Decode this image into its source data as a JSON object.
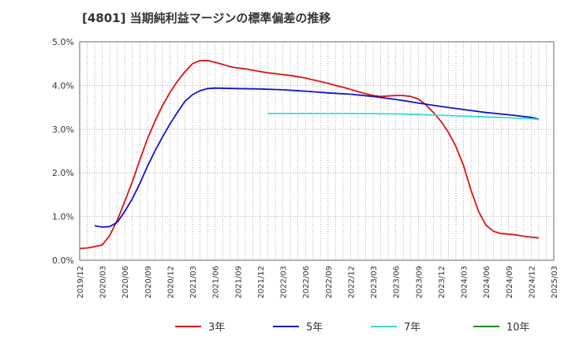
{
  "chart_data": {
    "type": "line",
    "title": "[4801]  当期純利益マージンの標準偏差の推移",
    "xlabel": "",
    "ylabel": "",
    "ylim": [
      0,
      5
    ],
    "y_ticks": [
      "0.0%",
      "1.0%",
      "2.0%",
      "3.0%",
      "4.0%",
      "5.0%"
    ],
    "x_tick_labels": [
      "2019/12",
      "2020/03",
      "2020/06",
      "2020/09",
      "2020/12",
      "2021/03",
      "2021/06",
      "2021/09",
      "2021/12",
      "2022/03",
      "2022/06",
      "2022/09",
      "2022/12",
      "2023/03",
      "2023/06",
      "2023/09",
      "2023/12",
      "2024/03",
      "2024/06",
      "2024/09",
      "2024/12",
      "2025/03"
    ],
    "grid": true,
    "legend_position": "bottom",
    "series": [
      {
        "name": "3年",
        "color": "#dd1111",
        "points": [
          [
            "2019/12",
            0.27
          ],
          [
            "2020/01",
            0.28
          ],
          [
            "2020/02",
            0.31
          ],
          [
            "2020/03",
            0.35
          ],
          [
            "2020/04",
            0.57
          ],
          [
            "2020/05",
            0.92
          ],
          [
            "2020/06",
            1.35
          ],
          [
            "2020/07",
            1.8
          ],
          [
            "2020/08",
            2.3
          ],
          [
            "2020/09",
            2.78
          ],
          [
            "2020/10",
            3.18
          ],
          [
            "2020/11",
            3.54
          ],
          [
            "2020/12",
            3.84
          ],
          [
            "2021/01",
            4.1
          ],
          [
            "2021/02",
            4.32
          ],
          [
            "2021/03",
            4.5
          ],
          [
            "2021/04",
            4.57
          ],
          [
            "2021/05",
            4.57
          ],
          [
            "2021/06",
            4.53
          ],
          [
            "2021/07",
            4.48
          ],
          [
            "2021/08",
            4.43
          ],
          [
            "2021/09",
            4.4
          ],
          [
            "2021/10",
            4.38
          ],
          [
            "2021/11",
            4.35
          ],
          [
            "2021/12",
            4.32
          ],
          [
            "2022/01",
            4.29
          ],
          [
            "2022/02",
            4.27
          ],
          [
            "2022/03",
            4.25
          ],
          [
            "2022/04",
            4.23
          ],
          [
            "2022/05",
            4.2
          ],
          [
            "2022/06",
            4.17
          ],
          [
            "2022/07",
            4.13
          ],
          [
            "2022/08",
            4.09
          ],
          [
            "2022/09",
            4.05
          ],
          [
            "2022/10",
            4.0
          ],
          [
            "2022/11",
            3.96
          ],
          [
            "2022/12",
            3.91
          ],
          [
            "2023/01",
            3.86
          ],
          [
            "2023/02",
            3.81
          ],
          [
            "2023/03",
            3.77
          ],
          [
            "2023/04",
            3.75
          ],
          [
            "2023/05",
            3.76
          ],
          [
            "2023/06",
            3.77
          ],
          [
            "2023/07",
            3.77
          ],
          [
            "2023/08",
            3.75
          ],
          [
            "2023/09",
            3.69
          ],
          [
            "2023/10",
            3.56
          ],
          [
            "2023/11",
            3.38
          ],
          [
            "2023/12",
            3.18
          ],
          [
            "2024/01",
            2.93
          ],
          [
            "2024/02",
            2.6
          ],
          [
            "2024/03",
            2.17
          ],
          [
            "2024/04",
            1.6
          ],
          [
            "2024/05",
            1.12
          ],
          [
            "2024/06",
            0.8
          ],
          [
            "2024/07",
            0.66
          ],
          [
            "2024/08",
            0.61
          ],
          [
            "2024/09",
            0.6
          ],
          [
            "2024/10",
            0.58
          ],
          [
            "2024/11",
            0.55
          ],
          [
            "2024/12",
            0.53
          ],
          [
            "2025/01",
            0.51
          ]
        ]
      },
      {
        "name": "5年",
        "color": "#1111cc",
        "points": [
          [
            "2020/02",
            0.79
          ],
          [
            "2020/03",
            0.76
          ],
          [
            "2020/04",
            0.77
          ],
          [
            "2020/05",
            0.87
          ],
          [
            "2020/06",
            1.12
          ],
          [
            "2020/07",
            1.41
          ],
          [
            "2020/08",
            1.76
          ],
          [
            "2020/09",
            2.15
          ],
          [
            "2020/10",
            2.5
          ],
          [
            "2020/11",
            2.82
          ],
          [
            "2020/12",
            3.12
          ],
          [
            "2021/01",
            3.39
          ],
          [
            "2021/02",
            3.64
          ],
          [
            "2021/03",
            3.79
          ],
          [
            "2021/04",
            3.88
          ],
          [
            "2021/05",
            3.93
          ],
          [
            "2021/06",
            3.94
          ],
          [
            "2021/09",
            3.93
          ],
          [
            "2021/12",
            3.92
          ],
          [
            "2022/03",
            3.9
          ],
          [
            "2022/06",
            3.87
          ],
          [
            "2022/09",
            3.83
          ],
          [
            "2022/12",
            3.8
          ],
          [
            "2023/03",
            3.75
          ],
          [
            "2023/06",
            3.68
          ],
          [
            "2023/09",
            3.6
          ],
          [
            "2023/12",
            3.52
          ],
          [
            "2024/03",
            3.45
          ],
          [
            "2024/06",
            3.38
          ],
          [
            "2024/09",
            3.33
          ],
          [
            "2024/12",
            3.27
          ],
          [
            "2025/01",
            3.23
          ]
        ]
      },
      {
        "name": "7年",
        "color": "#33dddd",
        "points": [
          [
            "2022/01",
            3.36
          ],
          [
            "2022/06",
            3.36
          ],
          [
            "2022/12",
            3.36
          ],
          [
            "2023/06",
            3.35
          ],
          [
            "2023/12",
            3.32
          ],
          [
            "2024/06",
            3.28
          ],
          [
            "2024/12",
            3.24
          ],
          [
            "2025/01",
            3.22
          ]
        ]
      },
      {
        "name": "10年",
        "color": "#228822",
        "points": []
      }
    ]
  }
}
